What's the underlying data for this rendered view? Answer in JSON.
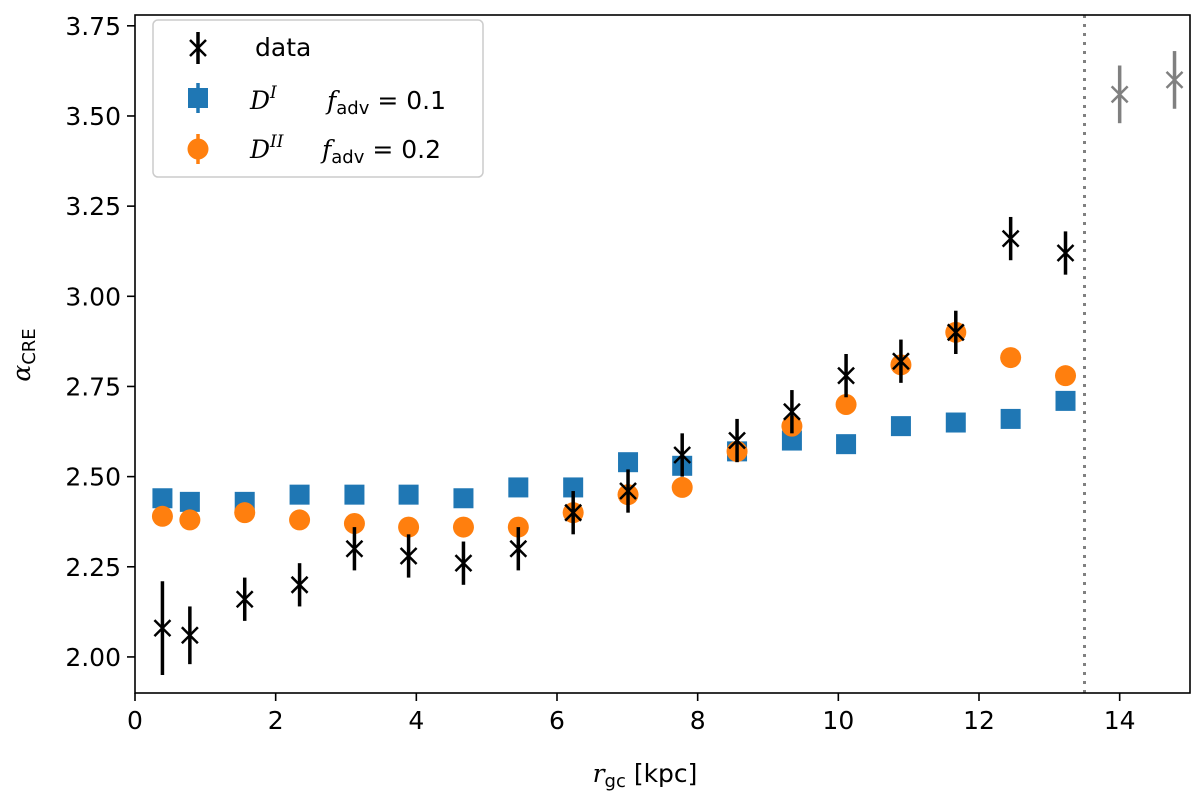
{
  "chart_data": {
    "type": "scatter",
    "xlabel": {
      "var": "r",
      "sub": "gc",
      "unit": "[kpc]"
    },
    "ylabel": {
      "var": "α",
      "sub": "CRE"
    },
    "xlim": [
      0,
      15
    ],
    "ylim": [
      1.9,
      3.78
    ],
    "xticks": [
      0,
      2,
      4,
      6,
      8,
      10,
      12,
      14
    ],
    "xtick_labels": [
      "0",
      "2",
      "4",
      "6",
      "8",
      "10",
      "12",
      "14"
    ],
    "yticks": [
      2.0,
      2.25,
      2.5,
      2.75,
      3.0,
      3.25,
      3.5,
      3.75
    ],
    "ytick_labels": [
      "2.00",
      "2.25",
      "2.50",
      "2.75",
      "3.00",
      "3.25",
      "3.50",
      "3.75"
    ],
    "vline": {
      "x": 13.5,
      "style": "dotted",
      "color": "#808080"
    },
    "legend_position": "top-left",
    "legend": [
      {
        "label": "data",
        "marker": "x",
        "color": "#000000"
      },
      {
        "label_main": "D",
        "label_sup": "I",
        "param_var": "f",
        "param_sub": "adv",
        "param_eq": "= 0.1",
        "marker": "square",
        "color": "#1f77b4"
      },
      {
        "label_main": "D",
        "label_sup": "II",
        "param_var": "f",
        "param_sub": "adv",
        "param_eq": "= 0.2",
        "marker": "circle",
        "color": "#ff7f0e"
      }
    ],
    "series": [
      {
        "name": "data",
        "marker": "x",
        "color": "#000000",
        "x": [
          0.39,
          0.78,
          1.56,
          2.34,
          3.12,
          3.89,
          4.67,
          5.45,
          6.23,
          7.01,
          7.78,
          8.56,
          9.34,
          10.11,
          10.89,
          11.67,
          12.45,
          13.23
        ],
        "y": [
          2.08,
          2.06,
          2.16,
          2.2,
          2.3,
          2.28,
          2.26,
          2.3,
          2.4,
          2.46,
          2.56,
          2.6,
          2.68,
          2.78,
          2.82,
          2.9,
          3.16,
          3.12
        ],
        "yerr": [
          0.13,
          0.08,
          0.06,
          0.06,
          0.06,
          0.06,
          0.06,
          0.06,
          0.06,
          0.06,
          0.06,
          0.06,
          0.06,
          0.06,
          0.06,
          0.06,
          0.06,
          0.06
        ]
      },
      {
        "name": "data (outer)",
        "marker": "x",
        "color": "#808080",
        "x": [
          14.0,
          14.78
        ],
        "y": [
          3.56,
          3.6
        ],
        "yerr": [
          0.08,
          0.08
        ]
      },
      {
        "name": "D^I f_adv=0.1",
        "marker": "square",
        "color": "#1f77b4",
        "x": [
          0.39,
          0.78,
          1.56,
          2.34,
          3.12,
          3.89,
          4.67,
          5.45,
          6.23,
          7.01,
          7.78,
          8.56,
          9.34,
          10.11,
          10.89,
          11.67,
          12.45,
          13.23
        ],
        "y": [
          2.44,
          2.43,
          2.43,
          2.45,
          2.45,
          2.45,
          2.44,
          2.47,
          2.47,
          2.54,
          2.53,
          2.57,
          2.6,
          2.59,
          2.64,
          2.65,
          2.66,
          2.71
        ]
      },
      {
        "name": "D^II f_adv=0.2",
        "marker": "circle",
        "color": "#ff7f0e",
        "x": [
          0.39,
          0.78,
          1.56,
          2.34,
          3.12,
          3.89,
          4.67,
          5.45,
          6.23,
          7.01,
          7.78,
          8.56,
          9.34,
          10.11,
          10.89,
          11.67,
          12.45,
          13.23
        ],
        "y": [
          2.39,
          2.38,
          2.4,
          2.38,
          2.37,
          2.36,
          2.36,
          2.36,
          2.4,
          2.45,
          2.47,
          2.57,
          2.64,
          2.7,
          2.81,
          2.9,
          2.83,
          2.78
        ]
      }
    ]
  }
}
